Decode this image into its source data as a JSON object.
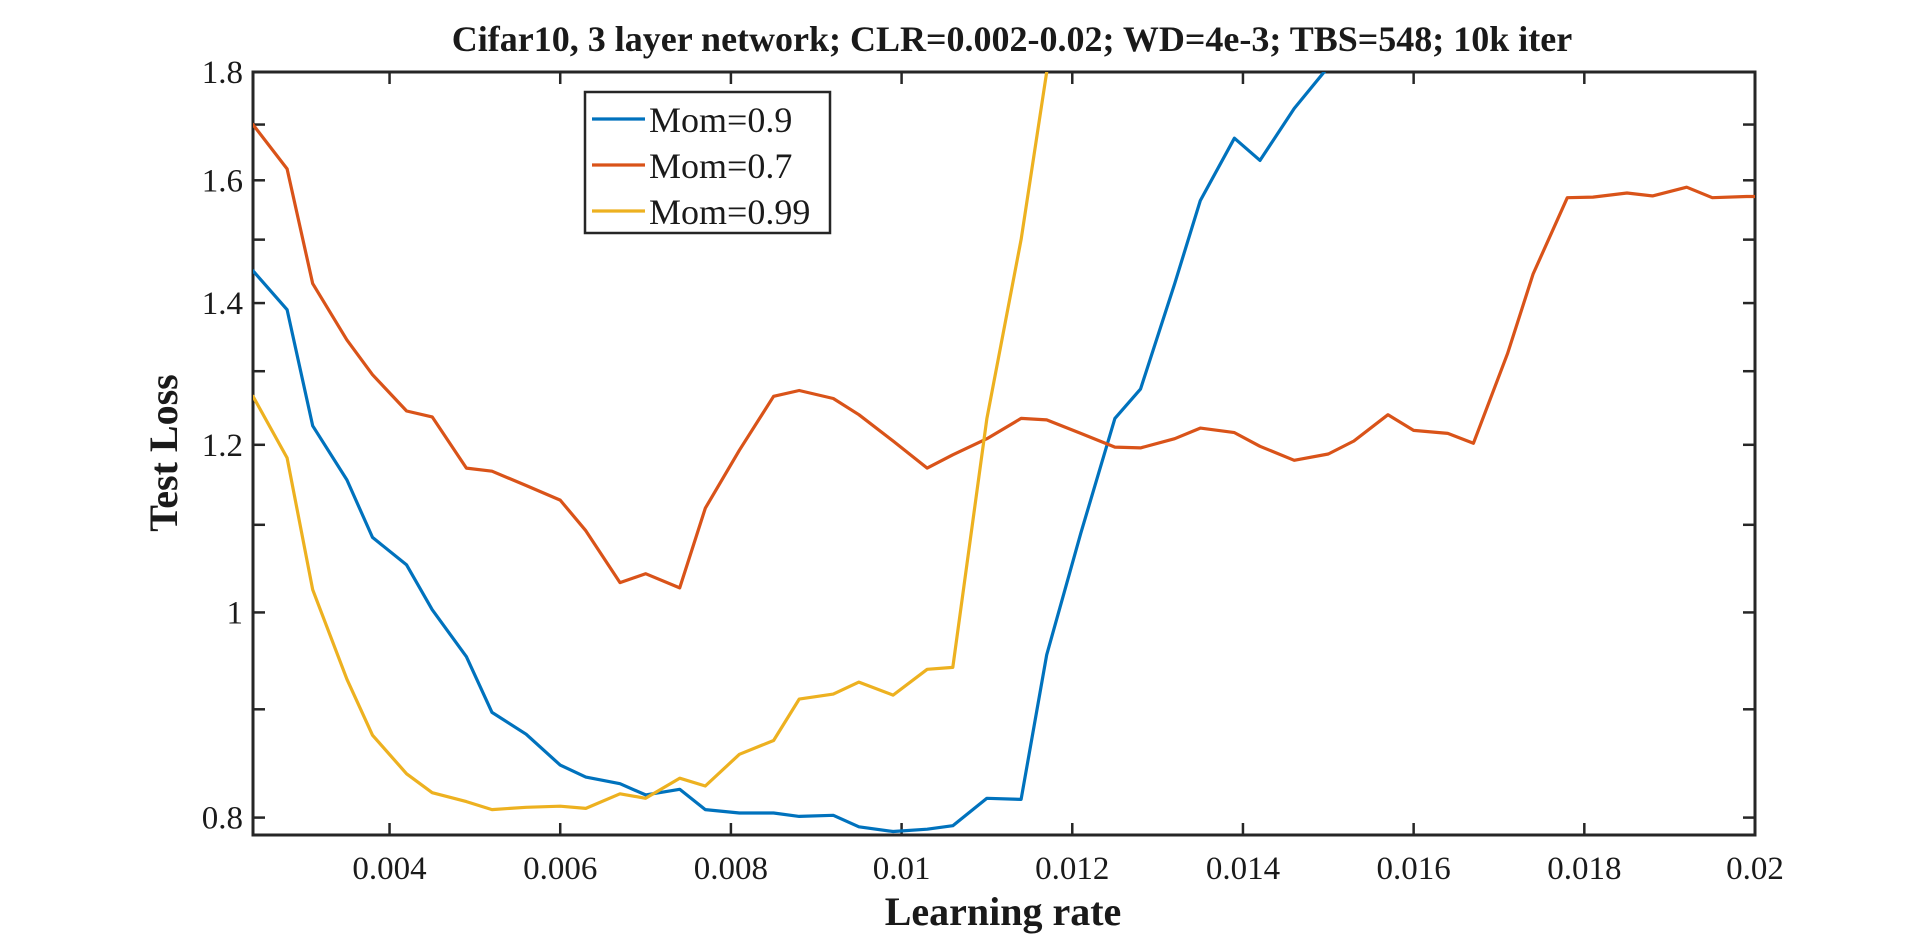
{
  "chart_data": {
    "type": "line",
    "title": "Cifar10, 3 layer network; CLR=0.002-0.02; WD=4e-3; TBS=548; 10k iter",
    "xlabel": "Learning rate",
    "ylabel": "Test Loss",
    "yscale": "log",
    "xlim": [
      0.0024,
      0.02
    ],
    "ylim": [
      0.785,
      1.8
    ],
    "xticks": [
      0.004,
      0.006,
      0.008,
      0.01,
      0.012,
      0.014,
      0.016,
      0.018,
      0.02
    ],
    "xtick_labels": [
      "0.004",
      "0.006",
      "0.008",
      "0.01",
      "0.012",
      "0.014",
      "0.016",
      "0.018",
      "0.02"
    ],
    "yticks": [
      0.8,
      1.0,
      1.2,
      1.4,
      1.6,
      1.8
    ],
    "ytick_labels": [
      "0.8",
      "1",
      "1.2",
      "1.4",
      "1.6",
      "1.8"
    ],
    "yticks_minor": [
      0.9,
      1.1,
      1.3,
      1.5,
      1.7
    ],
    "grid": false,
    "legend_position": "top-left",
    "series": [
      {
        "name": "Mom=0.9",
        "color": "#0072BD",
        "x": [
          0.0024,
          0.0028,
          0.0031,
          0.0035,
          0.0038,
          0.0042,
          0.0045,
          0.0049,
          0.0052,
          0.0056,
          0.006,
          0.0063,
          0.0067,
          0.007,
          0.0074,
          0.0077,
          0.0081,
          0.0085,
          0.0088,
          0.0092,
          0.0095,
          0.0099,
          0.0103,
          0.0106,
          0.011,
          0.0114,
          0.0117,
          0.0121,
          0.0125,
          0.0128,
          0.0132,
          0.0135,
          0.0139,
          0.0142,
          0.0146,
          0.015
        ],
        "y": [
          1.45,
          1.39,
          1.225,
          1.155,
          1.085,
          1.053,
          1.003,
          0.953,
          0.897,
          0.876,
          0.847,
          0.836,
          0.83,
          0.82,
          0.825,
          0.807,
          0.804,
          0.804,
          0.801,
          0.802,
          0.792,
          0.788,
          0.79,
          0.793,
          0.817,
          0.816,
          0.955,
          1.09,
          1.235,
          1.275,
          1.43,
          1.565,
          1.675,
          1.635,
          1.73,
          1.81
        ]
      },
      {
        "name": "Mom=0.7",
        "color": "#D95319",
        "x": [
          0.0024,
          0.0028,
          0.0031,
          0.0035,
          0.0038,
          0.0042,
          0.0045,
          0.0049,
          0.0052,
          0.0056,
          0.006,
          0.0063,
          0.0067,
          0.007,
          0.0074,
          0.0077,
          0.0081,
          0.0085,
          0.0088,
          0.0092,
          0.0095,
          0.0099,
          0.0103,
          0.0106,
          0.011,
          0.0114,
          0.0117,
          0.0121,
          0.0125,
          0.0128,
          0.0132,
          0.0135,
          0.0139,
          0.0142,
          0.0146,
          0.015,
          0.0153,
          0.0157,
          0.016,
          0.0164,
          0.0167,
          0.0171,
          0.0174,
          0.0178,
          0.0181,
          0.0185,
          0.0188,
          0.0192,
          0.0195,
          0.0199,
          0.02
        ],
        "y": [
          1.7,
          1.62,
          1.43,
          1.345,
          1.295,
          1.245,
          1.237,
          1.17,
          1.166,
          1.148,
          1.13,
          1.093,
          1.033,
          1.043,
          1.027,
          1.12,
          1.193,
          1.265,
          1.273,
          1.262,
          1.24,
          1.205,
          1.17,
          1.187,
          1.208,
          1.235,
          1.233,
          1.215,
          1.197,
          1.196,
          1.208,
          1.222,
          1.216,
          1.198,
          1.18,
          1.188,
          1.205,
          1.24,
          1.219,
          1.215,
          1.202,
          1.325,
          1.445,
          1.57,
          1.571,
          1.578,
          1.573,
          1.588,
          1.57,
          1.572,
          1.572
        ]
      },
      {
        "name": "Mom=0.99",
        "color": "#EDB120",
        "x": [
          0.0024,
          0.0028,
          0.0031,
          0.0035,
          0.0038,
          0.0042,
          0.0045,
          0.0049,
          0.0052,
          0.0056,
          0.006,
          0.0063,
          0.0067,
          0.007,
          0.0074,
          0.0077,
          0.0081,
          0.0085,
          0.0088,
          0.0092,
          0.0095,
          0.0099,
          0.0103,
          0.0106,
          0.011,
          0.0114,
          0.0117
        ],
        "y": [
          1.265,
          1.183,
          1.025,
          0.93,
          0.875,
          0.839,
          0.822,
          0.814,
          0.807,
          0.809,
          0.81,
          0.808,
          0.821,
          0.817,
          0.835,
          0.828,
          0.857,
          0.87,
          0.91,
          0.915,
          0.927,
          0.914,
          0.94,
          0.942,
          1.235,
          1.5,
          1.8
        ]
      }
    ]
  }
}
